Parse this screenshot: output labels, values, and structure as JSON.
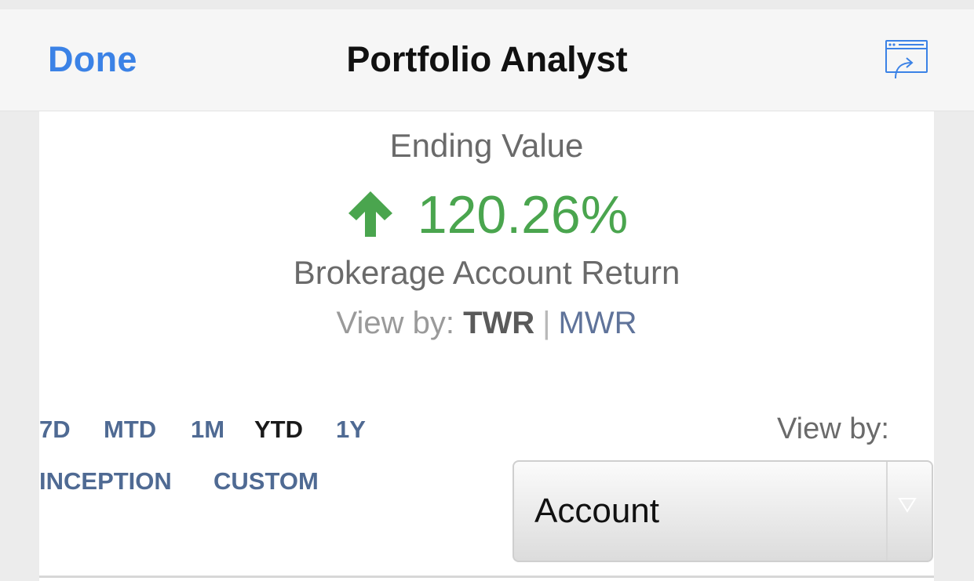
{
  "nav": {
    "done_label": "Done",
    "title": "Portfolio Analyst",
    "share_icon": "share-window-icon"
  },
  "summary": {
    "heading": "Ending Value",
    "return_value": "120.26%",
    "return_direction": "up",
    "return_color": "#4aa54e",
    "subheading": "Brokerage Account Return",
    "view_by_prefix": "View by:",
    "view_by_options": {
      "twr": "TWR",
      "separator": "|",
      "mwr": "MWR"
    },
    "view_by_selected": "TWR"
  },
  "periods": {
    "items": [
      "7D",
      "MTD",
      "1M",
      "YTD",
      "1Y",
      "INCEPTION",
      "CUSTOM"
    ],
    "selected": "YTD"
  },
  "view_by_select": {
    "label": "View by:",
    "value": "Account"
  },
  "colors": {
    "accent": "#3b82e6",
    "link": "#4f6a93",
    "positive": "#4aa54e"
  }
}
